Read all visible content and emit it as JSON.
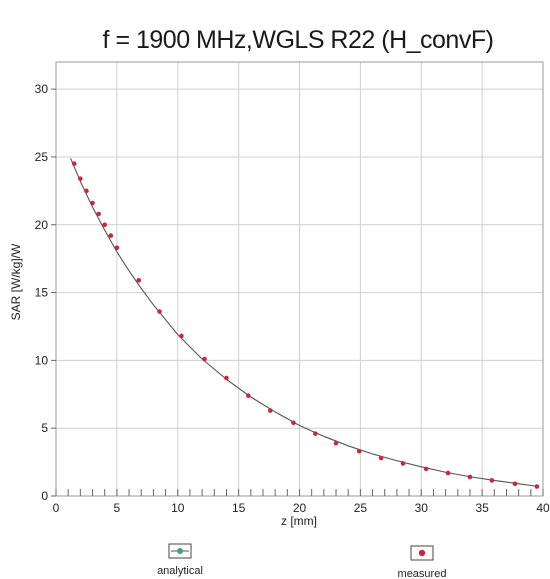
{
  "chart_data": {
    "type": "scatter",
    "title": "f = 1900 MHz,WGLS R22 (H_convF)",
    "xlabel": "z [mm]",
    "ylabel": "SAR [W/kg]/W",
    "xlim": [
      0,
      40
    ],
    "ylim": [
      0,
      32
    ],
    "xticks": [
      "0",
      "5",
      "10",
      "15",
      "20",
      "25",
      "30",
      "35",
      "40"
    ],
    "yticks": [
      "0",
      "5",
      "10",
      "15",
      "20",
      "25",
      "30"
    ],
    "grid": true,
    "legend_position": "bottom",
    "colors": {
      "analytical": "#3aa37a",
      "measured": "#c8283c",
      "curve": "#555555"
    },
    "series": [
      {
        "name": "analytical",
        "type": "line",
        "x": [
          1.2,
          2,
          3,
          4,
          5,
          6,
          7,
          8,
          9,
          10,
          12,
          14,
          16,
          18,
          20,
          22,
          24,
          26,
          28,
          30,
          32,
          34,
          36,
          38,
          39.5
        ],
        "values": [
          24.9,
          23.2,
          21.3,
          19.6,
          18.0,
          16.6,
          15.3,
          14.1,
          13.0,
          11.9,
          10.1,
          8.6,
          7.3,
          6.2,
          5.2,
          4.4,
          3.7,
          3.1,
          2.6,
          2.15,
          1.75,
          1.42,
          1.15,
          0.9,
          0.72
        ]
      },
      {
        "name": "measured",
        "type": "scatter",
        "x": [
          1.5,
          2.0,
          2.5,
          3.0,
          3.5,
          4.0,
          4.5,
          5.0,
          6.8,
          8.5,
          10.3,
          12.2,
          14.0,
          15.8,
          17.6,
          19.5,
          21.3,
          23.0,
          24.9,
          26.7,
          28.5,
          30.4,
          32.2,
          34.0,
          35.8,
          37.7,
          39.5
        ],
        "values": [
          24.5,
          23.4,
          22.5,
          21.6,
          20.8,
          20.0,
          19.2,
          18.3,
          15.9,
          13.6,
          11.8,
          10.1,
          8.7,
          7.4,
          6.3,
          5.4,
          4.6,
          3.9,
          3.3,
          2.8,
          2.4,
          2.0,
          1.7,
          1.4,
          1.15,
          0.9,
          0.7
        ]
      }
    ]
  }
}
